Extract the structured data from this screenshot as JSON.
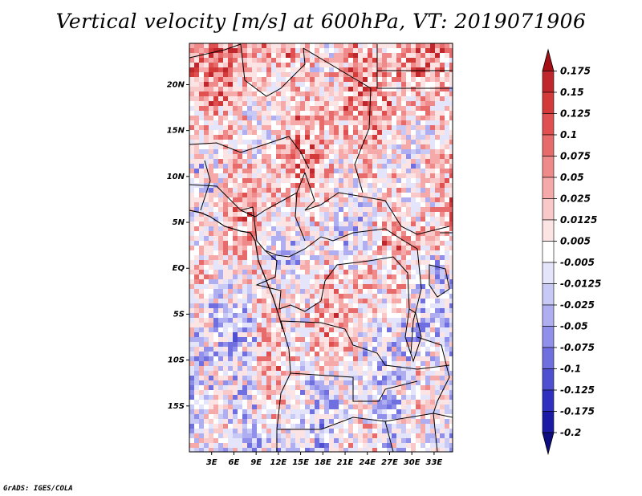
{
  "title": "Vertical velocity [m/s] at 600hPa, VT: 2019071906",
  "credit": "GrADS: IGES/COLA",
  "map": {
    "lat_labels": [
      "20N",
      "15N",
      "10N",
      "5N",
      "EQ",
      "5S",
      "10S",
      "15S"
    ],
    "lon_labels": [
      "3E",
      "6E",
      "9E",
      "12E",
      "15E",
      "18E",
      "21E",
      "24E",
      "27E",
      "30E",
      "33E"
    ],
    "lat_range": [
      -20,
      24.5
    ],
    "lon_range": [
      0,
      35.5
    ]
  },
  "colorbar": {
    "labels": [
      "0.175",
      "0.15",
      "0.125",
      "0.1",
      "0.075",
      "0.05",
      "0.025",
      "0.0125",
      "0.005",
      "-0.005",
      "-0.0125",
      "-0.025",
      "-0.05",
      "-0.075",
      "-0.1",
      "-0.125",
      "-0.175",
      "-0.2"
    ],
    "colors": [
      "#a50f15",
      "#c0272d",
      "#d33a3a",
      "#e05050",
      "#e86b6b",
      "#ef8a8a",
      "#f5a9a9",
      "#f9c8c8",
      "#fde4e4",
      "#ffffff",
      "#e4e4fb",
      "#c9c9f5",
      "#aeaef0",
      "#9090ea",
      "#6f6fe0",
      "#4f4fd2",
      "#3030c0",
      "#1a1aa5",
      "#0d0d80"
    ]
  }
}
